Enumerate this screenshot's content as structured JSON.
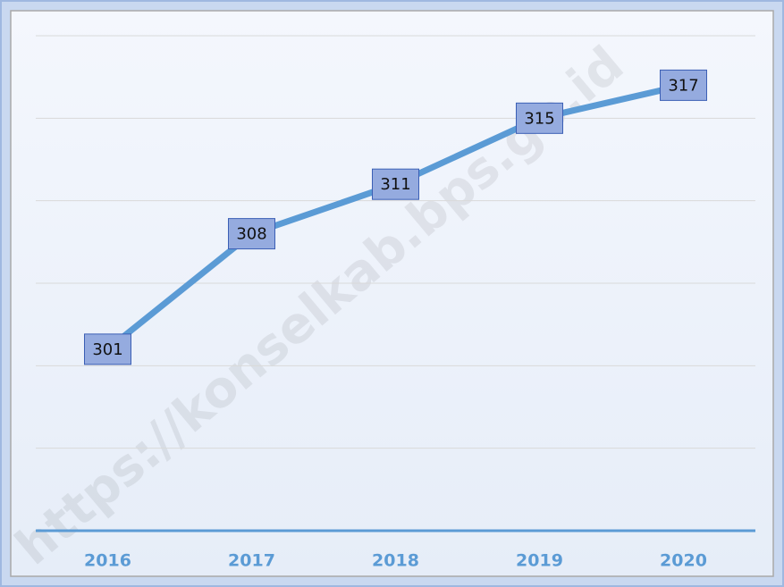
{
  "chart_data": {
    "type": "line",
    "categories": [
      "2016",
      "2017",
      "2018",
      "2019",
      "2020"
    ],
    "series": [
      {
        "values": [
          301,
          308,
          311,
          315,
          317
        ],
        "color": "#5b9bd5"
      }
    ],
    "ylim": [
      290,
      320
    ],
    "yticks": [
      290,
      295,
      300,
      305,
      310,
      315,
      320
    ],
    "grid": true,
    "watermark": "https://konselkab.bps.go.id"
  }
}
